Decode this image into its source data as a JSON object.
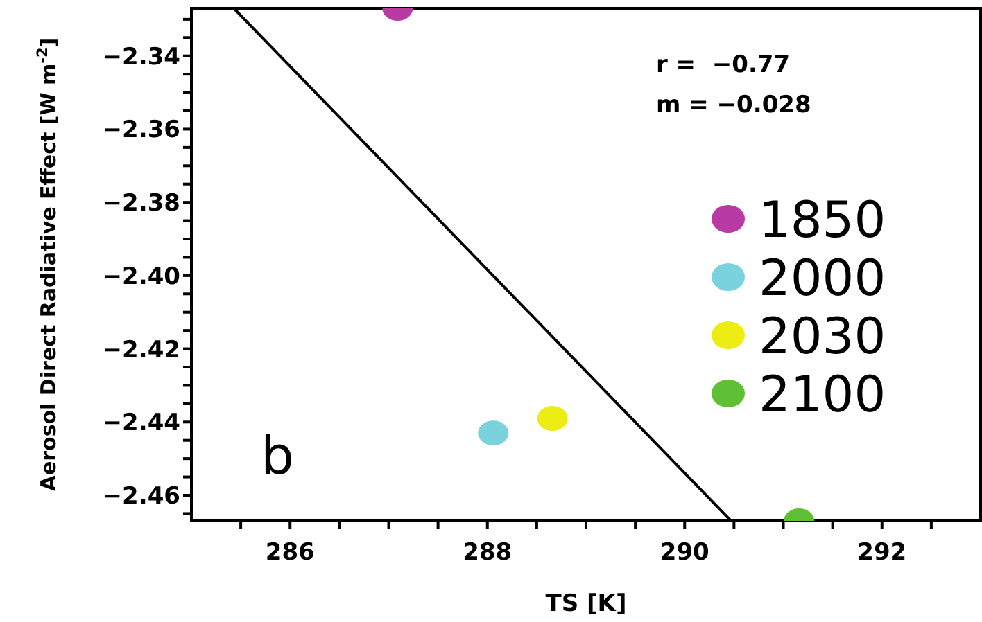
{
  "chart_data": {
    "type": "scatter",
    "xlabel": "TS [K]",
    "ylabel": "Aerosol Direct Radiative Effect [W m$^{-2}$]",
    "xlim": [
      285,
      293
    ],
    "ylim": [
      -2.467,
      -2.327
    ],
    "xticks": [
      {
        "value": 285.5,
        "label": null
      },
      286,
      {
        "value": 286.5,
        "label": null
      },
      {
        "value": 287,
        "label": null
      },
      {
        "value": 287.5,
        "label": null
      },
      288,
      {
        "value": 288.5,
        "label": null
      },
      {
        "value": 289,
        "label": null
      },
      {
        "value": 289.5,
        "label": null
      },
      290,
      {
        "value": 290.5,
        "label": null
      },
      {
        "value": 291,
        "label": null
      },
      {
        "value": 291.5,
        "label": null
      },
      292,
      {
        "value": 292.5,
        "label": null
      }
    ],
    "yticks": [
      {
        "value": -2.465,
        "label": null
      },
      {
        "value": -2.46,
        "label": "−2.46"
      },
      {
        "value": -2.455,
        "label": null
      },
      {
        "value": -2.45,
        "label": null
      },
      {
        "value": -2.445,
        "label": null
      },
      {
        "value": -2.44,
        "label": "−2.44"
      },
      {
        "value": -2.435,
        "label": null
      },
      {
        "value": -2.43,
        "label": null
      },
      {
        "value": -2.425,
        "label": null
      },
      {
        "value": -2.42,
        "label": "−2.42"
      },
      {
        "value": -2.415,
        "label": null
      },
      {
        "value": -2.41,
        "label": null
      },
      {
        "value": -2.405,
        "label": null
      },
      {
        "value": -2.4,
        "label": "−2.40"
      },
      {
        "value": -2.395,
        "label": null
      },
      {
        "value": -2.39,
        "label": null
      },
      {
        "value": -2.385,
        "label": null
      },
      {
        "value": -2.38,
        "label": "−2.38"
      },
      {
        "value": -2.375,
        "label": null
      },
      {
        "value": -2.37,
        "label": null
      },
      {
        "value": -2.365,
        "label": null
      },
      {
        "value": -2.36,
        "label": "−2.36"
      },
      {
        "value": -2.355,
        "label": null
      },
      {
        "value": -2.35,
        "label": null
      },
      {
        "value": -2.345,
        "label": null
      },
      {
        "value": -2.34,
        "label": "−2.34"
      },
      {
        "value": -2.335,
        "label": null
      },
      {
        "value": -2.33,
        "label": null
      }
    ],
    "legend": "right",
    "marker": "circle",
    "series": [
      {
        "name": "1850",
        "color": "#b83ba3",
        "x": [
          287.09
        ],
        "values": [
          -2.327
        ]
      },
      {
        "name": "2000",
        "color": "#7ad2dc",
        "x": [
          288.06
        ],
        "values": [
          -2.443
        ]
      },
      {
        "name": "2030",
        "color": "#eded14",
        "x": [
          288.66
        ],
        "values": [
          -2.439
        ]
      },
      {
        "name": "2100",
        "color": "#5fbf35",
        "x": [
          291.16
        ],
        "values": [
          -2.467
        ]
      },
      {
        "type": "line",
        "marker": "none",
        "color": "#000000",
        "x": [
          285.43,
          290.47
        ],
        "values": [
          -2.327,
          -2.467
        ]
      }
    ],
    "annotations": [
      "r =  −0.77",
      "m = −0.028",
      "b"
    ]
  }
}
